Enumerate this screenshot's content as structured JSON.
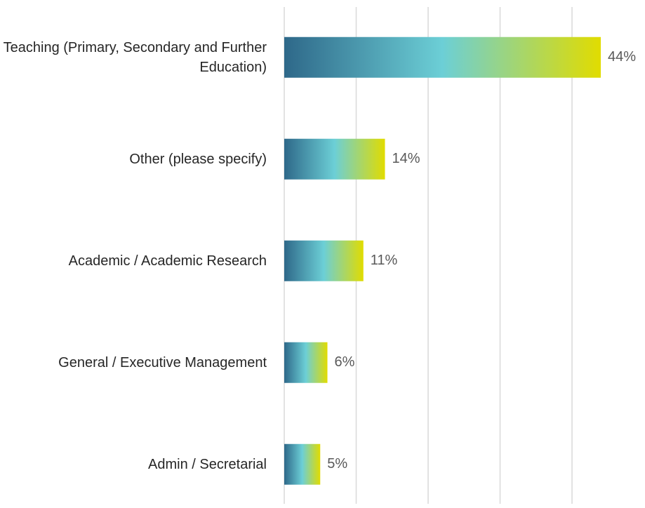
{
  "chart_data": {
    "type": "bar",
    "orientation": "horizontal",
    "categories": [
      "Teaching (Primary, Secondary and Further Education)",
      "Other (please specify)",
      "Academic / Academic Research",
      "General / Executive Management",
      "Admin / Secretarial"
    ],
    "values": [
      44,
      14,
      11,
      6,
      5
    ],
    "value_labels": [
      "44%",
      "14%",
      "11%",
      "6%",
      "5%"
    ],
    "colors": [
      "#2e6889",
      "#6ccfd6",
      "#e1dc00"
    ],
    "xlim": [
      0,
      50
    ],
    "xticks": [
      0,
      10,
      20,
      30,
      40
    ],
    "grid": true
  }
}
